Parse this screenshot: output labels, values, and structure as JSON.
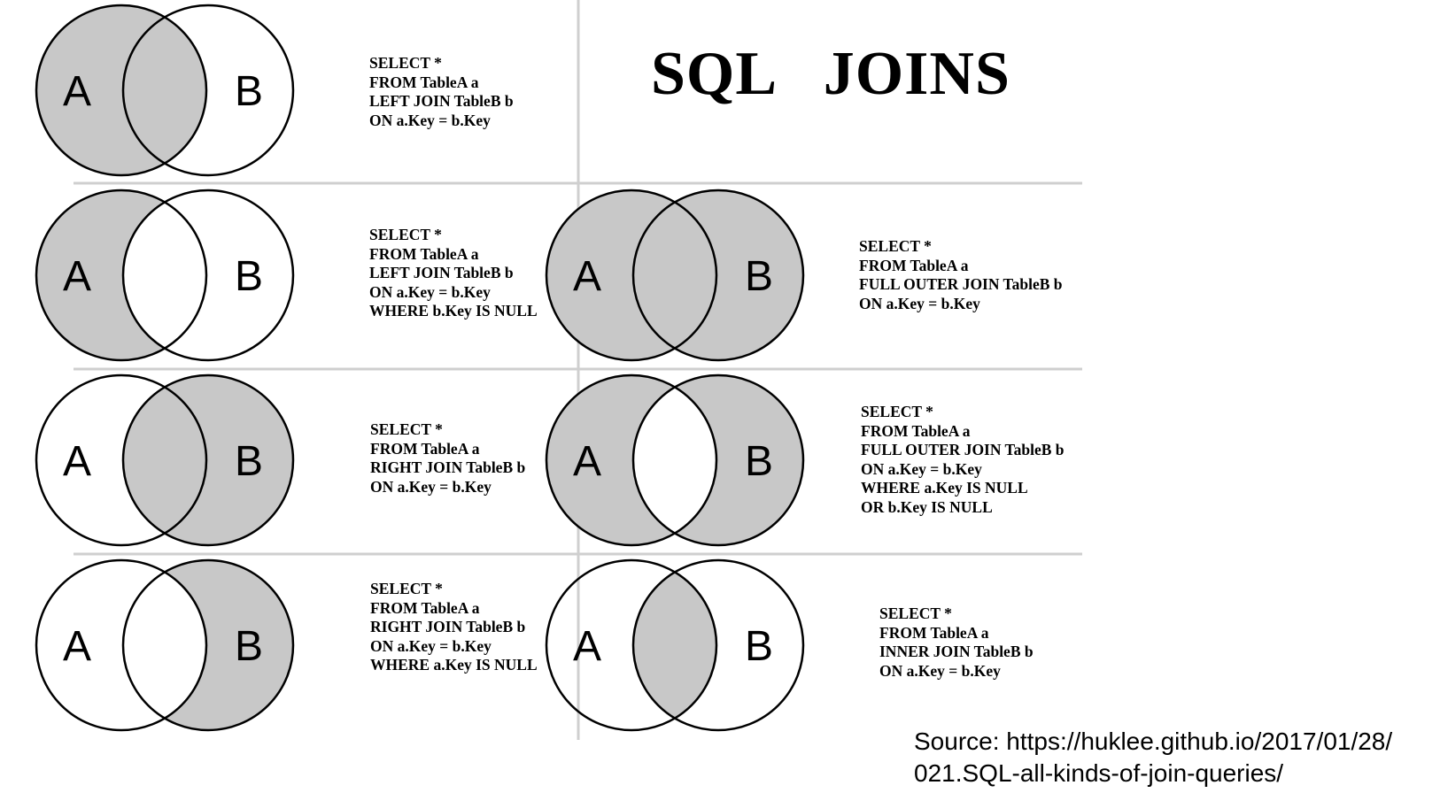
{
  "title": "SQL   JOINS",
  "circle_labels": {
    "a": "A",
    "b": "B"
  },
  "panels": [
    {
      "id": "left-join",
      "shade": [
        "a-only",
        "both"
      ],
      "query": [
        "SELECT *",
        "FROM TableA a",
        "LEFT JOIN TableB b",
        "ON a.Key = b.Key"
      ]
    },
    {
      "id": "left-join-excluding",
      "shade": [
        "a-only"
      ],
      "query": [
        "SELECT *",
        "FROM TableA a",
        "LEFT JOIN TableB b",
        "ON a.Key = b.Key",
        "WHERE b.Key IS NULL"
      ]
    },
    {
      "id": "right-join",
      "shade": [
        "b-only",
        "both"
      ],
      "query": [
        "SELECT *",
        "FROM TableA a",
        "RIGHT JOIN TableB b",
        "ON a.Key = b.Key"
      ]
    },
    {
      "id": "right-join-excluding",
      "shade": [
        "b-only"
      ],
      "query": [
        "SELECT *",
        "FROM TableA a",
        "RIGHT JOIN TableB b",
        "ON a.Key = b.Key",
        "WHERE a.Key IS NULL"
      ]
    },
    {
      "id": "full-outer-join",
      "shade": [
        "a-only",
        "both",
        "b-only"
      ],
      "query": [
        "SELECT *",
        "FROM TableA a",
        "FULL OUTER JOIN TableB b",
        "ON a.Key = b.Key"
      ]
    },
    {
      "id": "full-outer-join-excluding",
      "shade": [
        "a-only",
        "b-only"
      ],
      "query": [
        "SELECT *",
        "FROM TableA a",
        "FULL OUTER JOIN TableB b",
        "ON a.Key = b.Key",
        "WHERE a.Key IS NULL",
        "OR b.Key IS NULL"
      ]
    },
    {
      "id": "inner-join",
      "shade": [
        "both"
      ],
      "query": [
        "SELECT *",
        "FROM TableA a",
        "INNER JOIN TableB b",
        "ON a.Key = b.Key"
      ]
    }
  ],
  "source": [
    "Source: https://huklee.github.io/2017/01/28/",
    "021.SQL-all-kinds-of-join-queries/"
  ],
  "colors": {
    "shade": "#c8c8c8",
    "stroke": "#000000",
    "grid": "#cfcfcf"
  }
}
